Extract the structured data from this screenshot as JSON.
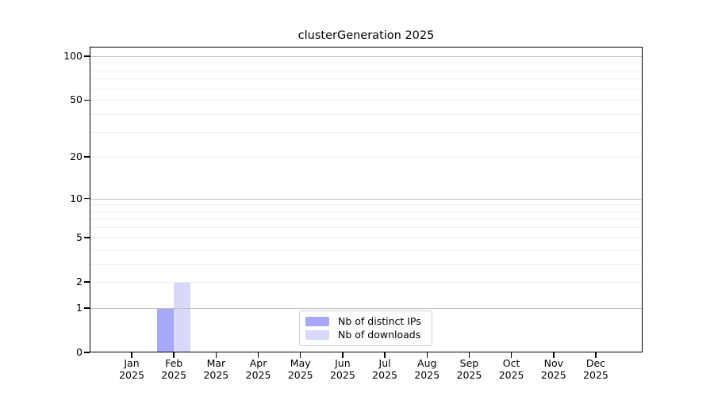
{
  "chart_data": {
    "type": "bar",
    "title": "clusterGeneration 2025",
    "x": {
      "categories": [
        "Jan",
        "Feb",
        "Mar",
        "Apr",
        "May",
        "Jun",
        "Jul",
        "Aug",
        "Sep",
        "Oct",
        "Nov",
        "Dec"
      ],
      "year_suffix": "2025"
    },
    "y": {
      "scale": "log10(value+1)",
      "ticks": [
        0,
        1,
        2,
        5,
        10,
        20,
        50,
        100
      ],
      "max": 116,
      "gridlines_major": [
        1,
        10,
        100
      ],
      "gridlines_minor": [
        2,
        3,
        4,
        5,
        6,
        7,
        8,
        9,
        20,
        30,
        40,
        50,
        60,
        70,
        80,
        90
      ]
    },
    "series": [
      {
        "name": "Nb of distinct IPs",
        "color": "#a8a8f8",
        "values": [
          0,
          1,
          0,
          0,
          0,
          0,
          0,
          0,
          0,
          0,
          0,
          0
        ]
      },
      {
        "name": "Nb of downloads",
        "color": "#d8d8f8",
        "values": [
          0,
          2,
          0,
          0,
          0,
          0,
          0,
          0,
          0,
          0,
          0,
          0
        ]
      }
    ],
    "legend": {
      "position": "inside-bottom-center",
      "entries": [
        "Nb of distinct IPs",
        "Nb of downloads"
      ]
    },
    "colors": {
      "grid_major": "#c0c0c0",
      "grid_minor": "#ededed",
      "axis": "#000000",
      "background": "#ffffff",
      "legend_border": "#cccccc",
      "text": "#000000"
    }
  }
}
